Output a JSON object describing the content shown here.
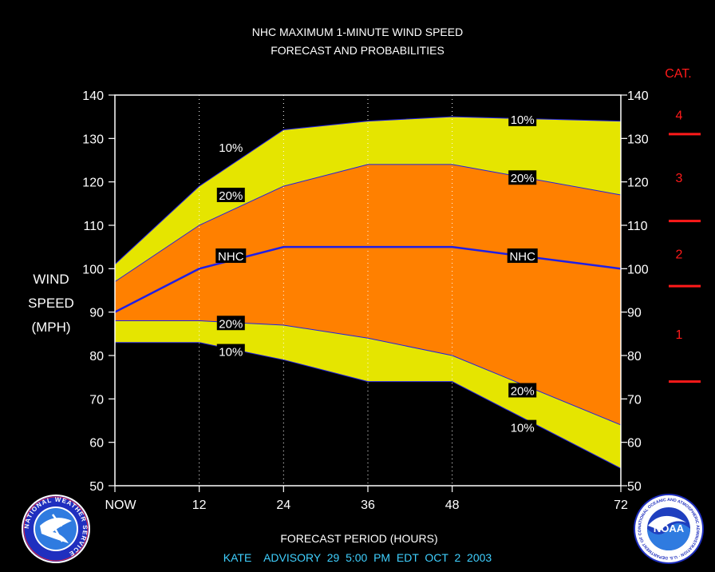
{
  "title_line1": "NHC MAXIMUM 1-MINUTE WIND SPEED",
  "title_line2": "FORECAST AND PROBABILITIES",
  "ylabel_lines": [
    "WIND",
    "SPEED",
    "(MPH)"
  ],
  "xlabel": "FORECAST PERIOD (HOURS)",
  "advisory": "KATE    ADVISORY  29  5:00  PM  EDT  OCT  2  2003",
  "category_header": "CAT.",
  "colors": {
    "background": "#000000",
    "outer_band": "#e5e500",
    "inner_band": "#ff8000",
    "forecast_line": "#1f1fe6",
    "category": "#ff1a1a",
    "advisory_text": "#3fd0ff"
  },
  "logos": [
    {
      "name": "national-weather-service-seal-icon",
      "text": "NATIONAL WEATHER SERVICE"
    },
    {
      "name": "noaa-seal-icon",
      "text": "NOAA",
      "ring_text": "NATIONAL OCEANIC AND ATMOSPHERIC ADMINISTRATION · U.S. DEPARTMENT OF COMMERCE"
    }
  ],
  "chart_data": {
    "type": "area",
    "title": "NHC MAXIMUM 1-MINUTE WIND SPEED FORECAST AND PROBABILITIES",
    "xlabel": "FORECAST PERIOD (HOURS)",
    "ylabel": "WIND SPEED (MPH)",
    "xlim": [
      0,
      72
    ],
    "ylim": [
      50,
      140
    ],
    "x_ticks": [
      0,
      12,
      24,
      36,
      48,
      72
    ],
    "x_tick_labels": [
      "NOW",
      "12",
      "24",
      "36",
      "48",
      "72"
    ],
    "y_ticks": [
      50,
      60,
      70,
      80,
      90,
      100,
      110,
      120,
      130,
      140
    ],
    "grid": "vertical dotted lines at 12, 24, 36, 48",
    "x": [
      0,
      12,
      24,
      36,
      48,
      72
    ],
    "series": [
      {
        "name": "10%",
        "role": "upper",
        "values": [
          101,
          119,
          132,
          134,
          135,
          134
        ]
      },
      {
        "name": "20%",
        "role": "upper",
        "values": [
          97,
          110,
          119,
          124,
          124,
          117
        ]
      },
      {
        "name": "NHC",
        "role": "forecast",
        "values": [
          90,
          100,
          105,
          105,
          105,
          100
        ]
      },
      {
        "name": "20%",
        "role": "lower",
        "values": [
          88,
          88,
          87,
          84,
          80,
          64
        ]
      },
      {
        "name": "10%",
        "role": "lower",
        "values": [
          83,
          83,
          79,
          74,
          74,
          54
        ]
      }
    ],
    "annotations": [
      {
        "text": "10%",
        "x": 16.5,
        "y": 128
      },
      {
        "text": "20%",
        "x": 16.5,
        "y": 117
      },
      {
        "text": "NHC",
        "x": 16.5,
        "y": 103
      },
      {
        "text": "20%",
        "x": 16.5,
        "y": 87.5
      },
      {
        "text": "10%",
        "x": 16.5,
        "y": 81
      },
      {
        "text": "10%",
        "x": 58,
        "y": 134.5
      },
      {
        "text": "20%",
        "x": 58,
        "y": 121
      },
      {
        "text": "NHC",
        "x": 58,
        "y": 103
      },
      {
        "text": "20%",
        "x": 58,
        "y": 72
      },
      {
        "text": "10%",
        "x": 58,
        "y": 63.5
      }
    ],
    "categories": [
      {
        "label": "4",
        "from": 131,
        "to": 140
      },
      {
        "label": "3",
        "from": 111,
        "to": 131
      },
      {
        "label": "2",
        "from": 96,
        "to": 111
      },
      {
        "label": "1",
        "from": 74,
        "to": 96
      }
    ],
    "category_boundaries": [
      74,
      96,
      111,
      131
    ]
  }
}
